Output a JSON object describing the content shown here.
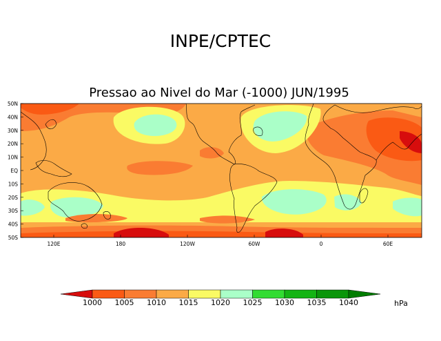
{
  "header": {
    "title": "INPE/CPTEC",
    "subtitle": "Pressao ao Nivel do Mar (-1000) JUN/1995"
  },
  "map": {
    "latitude_labels": [
      "50N",
      "40N",
      "30N",
      "20N",
      "10N",
      "EQ",
      "10S",
      "20S",
      "30S",
      "40S",
      "50S"
    ],
    "longitude_labels": [
      "120E",
      "180",
      "120W",
      "60W",
      "0",
      "60E"
    ]
  },
  "legend": {
    "levels": [
      "1000",
      "1005",
      "1010",
      "1015",
      "1020",
      "1025",
      "1030",
      "1035",
      "1040"
    ],
    "colors": [
      "#d70d0d",
      "#fa5a14",
      "#fa7c32",
      "#fbaa46",
      "#fafa64",
      "#aaffc8",
      "#32dc32",
      "#14b414",
      "#0a960a",
      "#007d00"
    ],
    "unit": "hPa"
  }
}
